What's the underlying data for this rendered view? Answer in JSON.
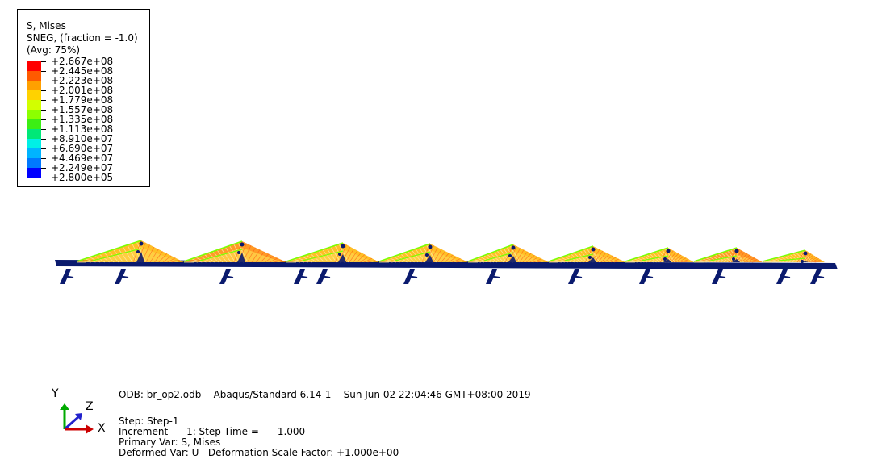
{
  "legend": {
    "title_line1": "S, Mises",
    "title_line2": "SNEG, (fraction = -1.0)",
    "title_line3": "(Avg: 75%)",
    "values": [
      "+2.667e+08",
      "+2.445e+08",
      "+2.223e+08",
      "+2.001e+08",
      "+1.779e+08",
      "+1.557e+08",
      "+1.335e+08",
      "+1.113e+08",
      "+8.910e+07",
      "+6.690e+07",
      "+4.469e+07",
      "+2.249e+07",
      "+2.800e+05"
    ],
    "colors": [
      "#ff0000",
      "#ff5a00",
      "#ffa000",
      "#ffd200",
      "#d2ff00",
      "#8cff00",
      "#3cee14",
      "#00e878",
      "#00f0e6",
      "#00b4ff",
      "#0078ff",
      "#0000ff"
    ]
  },
  "triad": {
    "y": "Y",
    "z": "Z",
    "x": "X",
    "colors": {
      "y": "#00aa00",
      "z": "#2222cc",
      "x": "#cc0000"
    }
  },
  "info": {
    "line1": "ODB: br_op2.odb    Abaqus/Standard 6.14-1    Sun Jun 02 22:04:46 GMT+08:00 2019",
    "line2": "Step: Step-1",
    "line3": "Increment      1: Step Time =      1.000",
    "line4": "Primary Var: S, Mises",
    "line5": "Deformed Var: U   Deformation Scale Factor: +1.000e+00"
  },
  "model": {
    "deck_color": "#0a1a6e",
    "colors": {
      "hot": "#ff8a00",
      "warm": "#ffb400",
      "mid": "#ffd24a",
      "pale": "#ffe9a0",
      "green": "#7cff00",
      "red": "#ff4a10"
    }
  }
}
